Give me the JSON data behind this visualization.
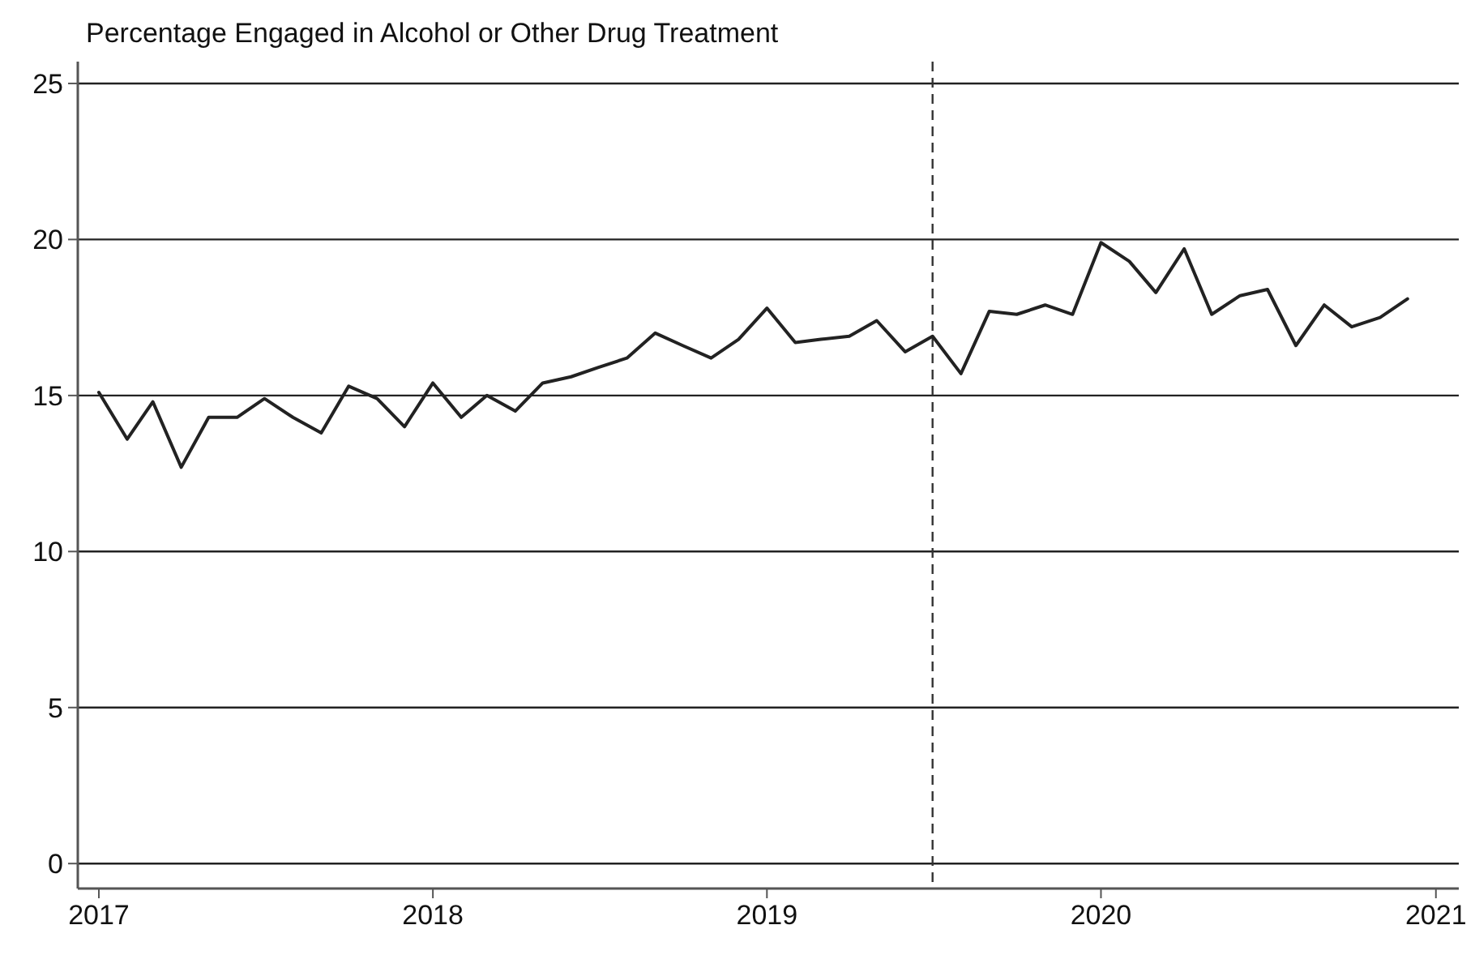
{
  "chart_data": {
    "type": "line",
    "title": "Percentage Engaged in Alcohol or Other Drug Treatment",
    "x": [
      "2017-01",
      "2017-02",
      "2017-03",
      "2017-04",
      "2017-05",
      "2017-06",
      "2017-07",
      "2017-08",
      "2017-09",
      "2017-10",
      "2017-11",
      "2017-12",
      "2018-01",
      "2018-02",
      "2018-03",
      "2018-04",
      "2018-05",
      "2018-06",
      "2018-07",
      "2018-08",
      "2018-09",
      "2018-10",
      "2018-11",
      "2018-12",
      "2019-01",
      "2019-02",
      "2019-03",
      "2019-04",
      "2019-05",
      "2019-06",
      "2019-07",
      "2019-08",
      "2019-09",
      "2019-10",
      "2019-11",
      "2019-12",
      "2020-01",
      "2020-02",
      "2020-03",
      "2020-04",
      "2020-05",
      "2020-06",
      "2020-07",
      "2020-08",
      "2020-09",
      "2020-10",
      "2020-11",
      "2020-12"
    ],
    "series": [
      {
        "color": "#222222",
        "values": [
          15.1,
          13.6,
          14.8,
          12.7,
          14.3,
          14.3,
          14.9,
          14.3,
          13.8,
          15.3,
          14.9,
          14.0,
          15.4,
          14.3,
          15.0,
          14.5,
          15.4,
          15.6,
          15.9,
          16.2,
          17.0,
          16.6,
          16.2,
          16.8,
          17.8,
          16.7,
          16.8,
          16.9,
          17.4,
          16.4,
          16.9,
          15.7,
          17.7,
          17.6,
          17.9,
          17.6,
          19.9,
          19.3,
          18.3,
          19.7,
          17.6,
          18.2,
          18.4,
          16.6,
          17.9,
          17.2,
          17.5,
          18.1
        ]
      }
    ],
    "xlim": [
      "2016-12-09",
      "2021-01-26"
    ],
    "xticks": [
      "2017",
      "2018",
      "2019",
      "2020",
      "2021"
    ],
    "ylim": [
      -0.8,
      25.7
    ],
    "yticks": [
      0,
      5,
      10,
      15,
      20,
      25
    ],
    "grid": "y",
    "marker": "none",
    "line_style": "solid",
    "ref_lines": [
      {
        "axis": "x",
        "value": "2019-07-01",
        "line_style": "dashed",
        "color": "#333333"
      }
    ]
  }
}
